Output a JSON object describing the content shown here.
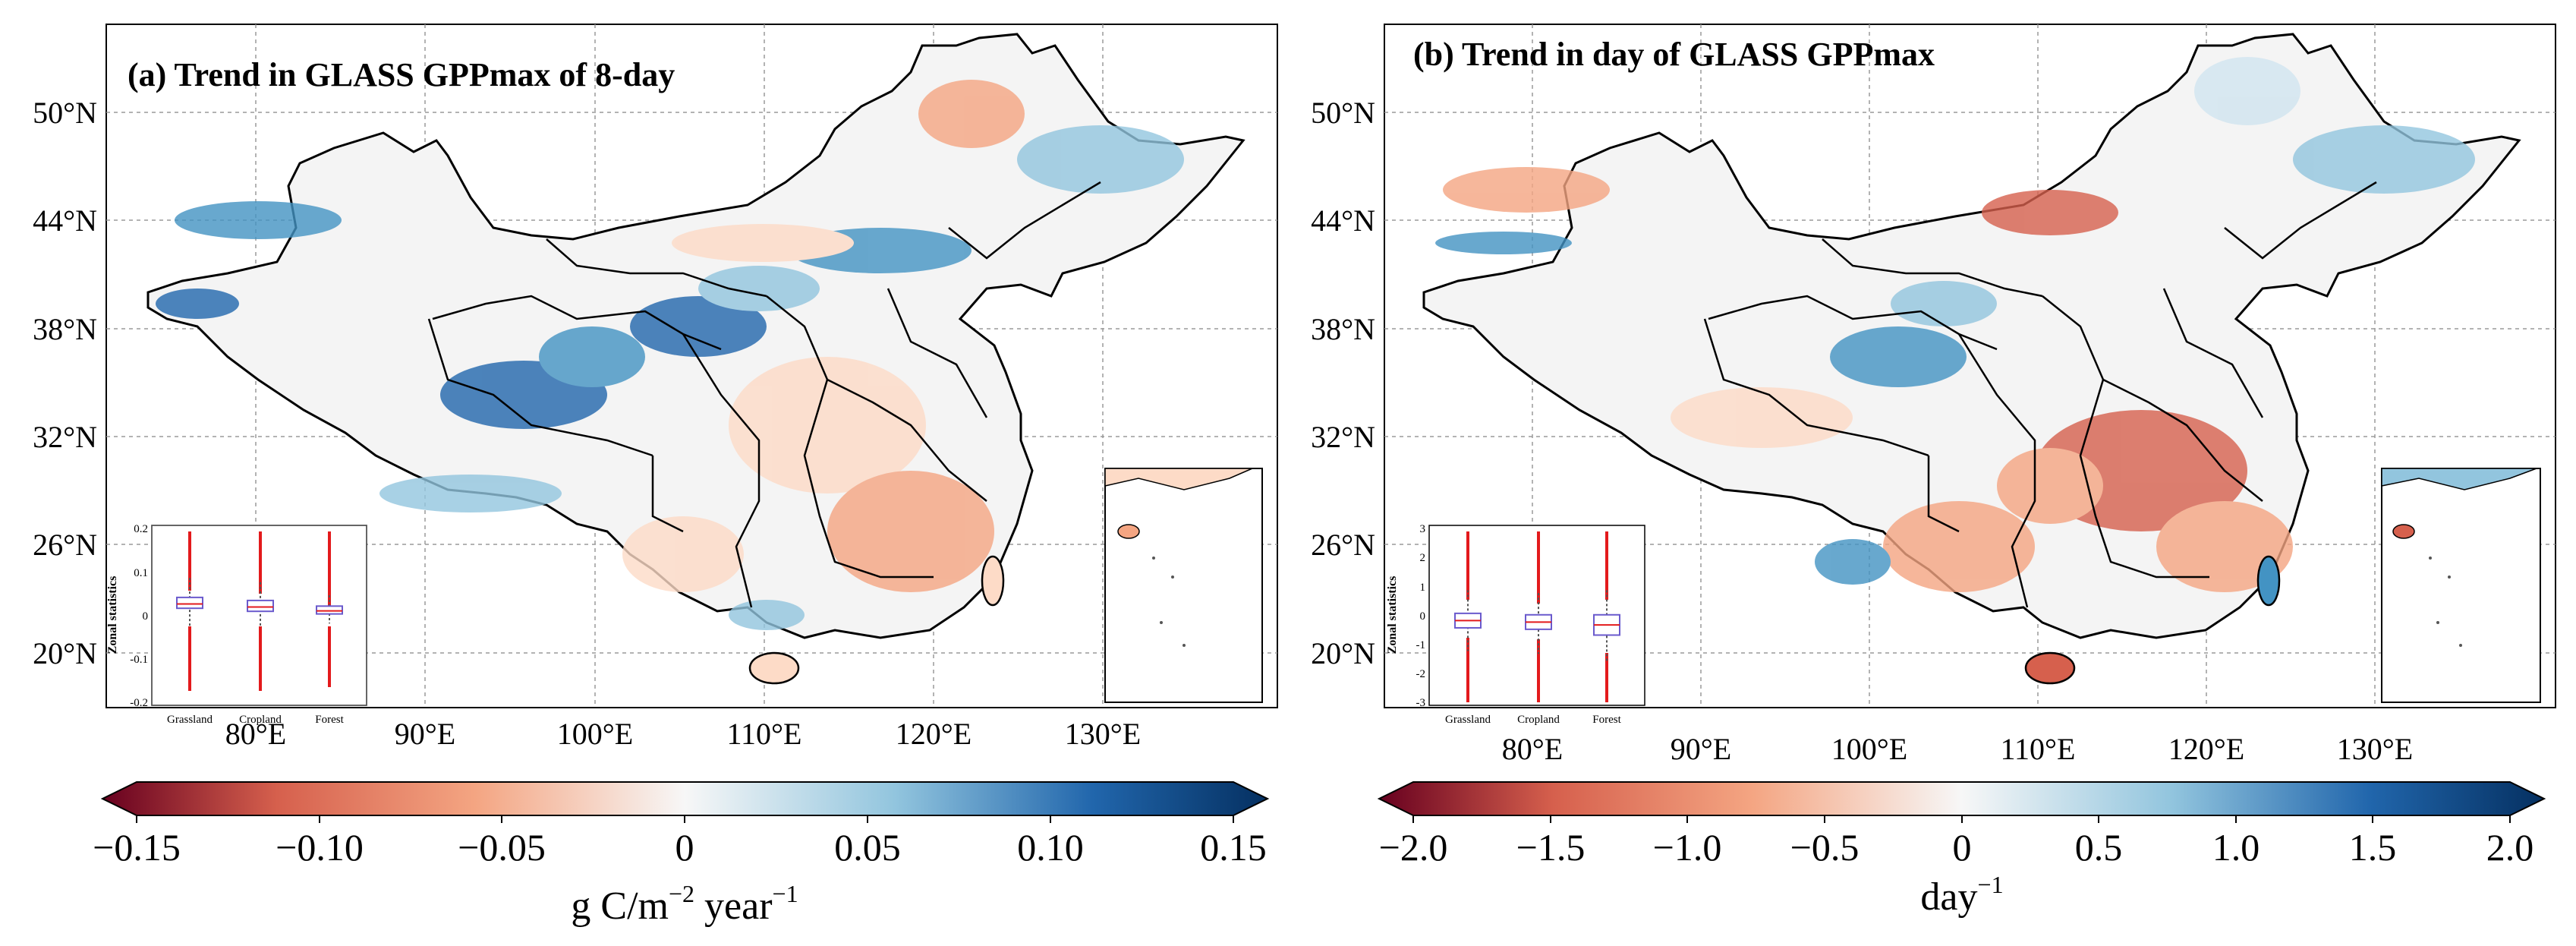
{
  "panels": [
    {
      "title": "(a) Trend in GLASS GPPmax of 8-day",
      "lat_labels": [
        "50°N",
        "44°N",
        "38°N",
        "32°N",
        "26°N",
        "20°N"
      ],
      "lon_labels": [
        "80°E",
        "90°E",
        "100°E",
        "110°E",
        "120°E",
        "130°E"
      ],
      "colorbar": {
        "ticks": [
          "−0.15",
          "−0.10",
          "−0.05",
          "0",
          "0.05",
          "0.10",
          "0.15"
        ],
        "label_main": "g C/m",
        "label_sup1": "−2",
        "label_mid": " year",
        "label_sup2": "−1",
        "cmap": "RdBu",
        "range": [
          -0.15,
          0.15
        ]
      },
      "inset": {
        "ylabel": "Zonal statistics",
        "yticks": [
          "0.2",
          "0.1",
          "0",
          "-0.1",
          "-0.2"
        ],
        "categories": [
          "Grassland",
          "Cropland",
          "Forest"
        ],
        "box_q1": [
          0.025,
          0.018,
          0.012
        ],
        "box_median": [
          0.035,
          0.028,
          0.019
        ],
        "box_q3": [
          0.05,
          0.043,
          0.03
        ],
        "whisker_low": [
          -0.02,
          -0.02,
          -0.01
        ],
        "whisker_high": [
          0.095,
          0.085,
          0.055
        ]
      }
    },
    {
      "title": "(b) Trend in day of GLASS GPPmax",
      "lat_labels": [
        "50°N",
        "44°N",
        "38°N",
        "32°N",
        "26°N",
        "20°N"
      ],
      "lon_labels": [
        "80°E",
        "90°E",
        "100°E",
        "110°E",
        "120°E",
        "130°E"
      ],
      "colorbar": {
        "ticks": [
          "−2.0",
          "−1.5",
          "−1.0",
          "−0.5",
          "0",
          "0.5",
          "1.0",
          "1.5",
          "2.0"
        ],
        "label_main": "day",
        "label_sup1": "−1",
        "label_mid": "",
        "label_sup2": "",
        "cmap": "RdBu",
        "range": [
          -2.0,
          2.0
        ]
      },
      "inset": {
        "ylabel": "Zonal statistics",
        "yticks": [
          "3",
          "2",
          "1",
          "0",
          "-1",
          "-2",
          "-3"
        ],
        "categories": [
          "Grassland",
          "Cropland",
          "Forest"
        ],
        "box_q1": [
          -0.3,
          -0.35,
          -0.55
        ],
        "box_median": [
          -0.05,
          -0.1,
          -0.2
        ],
        "box_q3": [
          0.2,
          0.15,
          0.15
        ],
        "whisker_low": [
          -1.1,
          -1.2,
          -1.5
        ],
        "whisker_high": [
          1.0,
          0.9,
          1.0
        ]
      }
    }
  ],
  "colors": {
    "red": "#b2182b",
    "blue": "#2166ac",
    "white": "#f7f7f7"
  }
}
